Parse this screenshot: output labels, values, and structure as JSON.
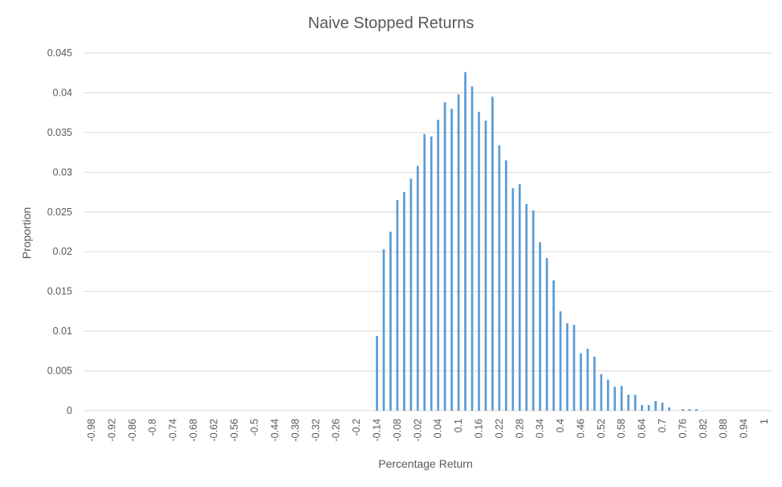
{
  "chart_data": {
    "type": "bar",
    "title": "Naive Stopped Returns",
    "xlabel": "Percentage Return",
    "ylabel": "Proportion",
    "ylim": [
      0,
      0.045
    ],
    "y_ticks": [
      "0",
      "0.005",
      "0.01",
      "0.015",
      "0.02",
      "0.025",
      "0.03",
      "0.035",
      "0.04",
      "0.045"
    ],
    "x_ticks": [
      "-0.98",
      "-0.92",
      "-0.86",
      "-0.8",
      "-0.74",
      "-0.68",
      "-0.62",
      "-0.56",
      "-0.5",
      "-0.44",
      "-0.38",
      "-0.32",
      "-0.26",
      "-0.2",
      "-0.14",
      "-0.08",
      "-0.02",
      "0.04",
      "0.1",
      "0.16",
      "0.22",
      "0.28",
      "0.34",
      "0.4",
      "0.46",
      "0.52",
      "0.58",
      "0.64",
      "0.7",
      "0.76",
      "0.82",
      "0.88",
      "0.94",
      "1"
    ],
    "x": [
      -0.98,
      -0.96,
      -0.94,
      -0.92,
      -0.9,
      -0.88,
      -0.86,
      -0.84,
      -0.82,
      -0.8,
      -0.78,
      -0.76,
      -0.74,
      -0.72,
      -0.7,
      -0.68,
      -0.66,
      -0.64,
      -0.62,
      -0.6,
      -0.58,
      -0.56,
      -0.54,
      -0.52,
      -0.5,
      -0.48,
      -0.46,
      -0.44,
      -0.42,
      -0.4,
      -0.38,
      -0.36,
      -0.34,
      -0.32,
      -0.3,
      -0.28,
      -0.26,
      -0.24,
      -0.22,
      -0.2,
      -0.18,
      -0.16,
      -0.14,
      -0.12,
      -0.1,
      -0.08,
      -0.06,
      -0.04,
      -0.02,
      0,
      0.02,
      0.04,
      0.06,
      0.08,
      0.1,
      0.12,
      0.14,
      0.16,
      0.18,
      0.2,
      0.22,
      0.24,
      0.26,
      0.28,
      0.3,
      0.32,
      0.34,
      0.36,
      0.38,
      0.4,
      0.42,
      0.44,
      0.46,
      0.48,
      0.5,
      0.52,
      0.54,
      0.56,
      0.58,
      0.6,
      0.62,
      0.64,
      0.66,
      0.68,
      0.7,
      0.72,
      0.74,
      0.76,
      0.78,
      0.8,
      0.82,
      0.84,
      0.86,
      0.88,
      0.9,
      0.92,
      0.94,
      0.96,
      0.98,
      1
    ],
    "values": [
      0,
      0,
      0,
      0,
      0,
      0,
      0,
      0,
      0,
      0,
      0,
      0,
      0,
      0,
      0,
      0,
      0,
      0,
      0,
      0,
      0,
      0,
      0,
      0,
      0,
      0,
      0,
      0,
      0,
      0,
      0,
      0,
      0,
      0,
      0,
      0,
      0,
      0,
      0,
      0,
      0,
      0,
      0.0094,
      0.0203,
      0.0225,
      0.0265,
      0.0275,
      0.0292,
      0.0308,
      0.0348,
      0.0345,
      0.0366,
      0.0388,
      0.038,
      0.0398,
      0.0426,
      0.0408,
      0.0376,
      0.0365,
      0.0395,
      0.0334,
      0.0315,
      0.028,
      0.0285,
      0.026,
      0.0252,
      0.0212,
      0.0192,
      0.0164,
      0.0125,
      0.011,
      0.0108,
      0.0072,
      0.0078,
      0.0068,
      0.0046,
      0.0039,
      0.003,
      0.0031,
      0.002,
      0.002,
      0.0007,
      0.0007,
      0.0012,
      0.001,
      0.0004,
      0,
      0.0002,
      0.0002,
      0.0002,
      0,
      0,
      0,
      0,
      0,
      0,
      0,
      0,
      0,
      0
    ],
    "grid": true,
    "legend": "none",
    "colors": {
      "bar": "#5b9bd5",
      "grid": "#d9d9d9",
      "text": "#595959"
    }
  }
}
